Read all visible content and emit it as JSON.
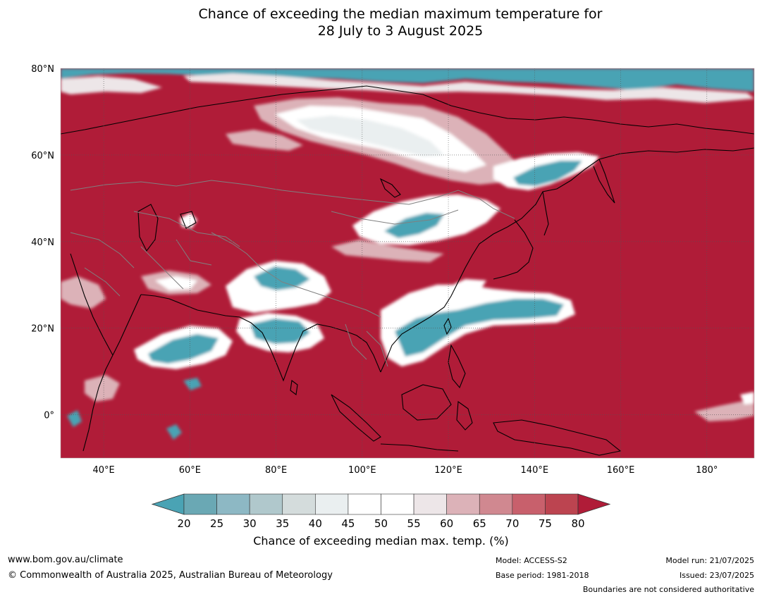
{
  "title": {
    "line1": "Chance of exceeding the median maximum temperature for",
    "line2": "28 July to 3 August 2025"
  },
  "map": {
    "lat_labels": [
      "80°N",
      "60°N",
      "40°N",
      "20°N",
      "0°"
    ],
    "lon_labels": [
      "40°E",
      "60°E",
      "80°E",
      "100°E",
      "120°E",
      "140°E",
      "160°E",
      "180°"
    ],
    "lat_values": [
      80,
      60,
      40,
      20,
      0
    ],
    "lon_values": [
      40,
      60,
      80,
      100,
      120,
      140,
      160,
      180
    ],
    "extent": {
      "lon_min": 30,
      "lon_max": 191,
      "lat_min": -10,
      "lat_max": 80
    },
    "colors": {
      "land_high": "#b01c38",
      "ocean_high": "#b01c38",
      "low": "#4aa3b4",
      "neutral": "#ffffff",
      "pale_pink": "#dcb2b8",
      "mid_red": "#c8606c",
      "coast": "#000000",
      "border": "#808080"
    }
  },
  "colorbar": {
    "ticks": [
      "20",
      "25",
      "30",
      "35",
      "40",
      "45",
      "50",
      "55",
      "60",
      "65",
      "70",
      "75",
      "80"
    ],
    "colors": [
      "#4aa3b4",
      "#6aa8b4",
      "#8db8c4",
      "#b0c8cc",
      "#d4dcdc",
      "#eaeff0",
      "#ffffff",
      "#ffffff",
      "#ede6e8",
      "#dcb2b8",
      "#d08890",
      "#c8606c",
      "#bc4450",
      "#b01c38"
    ],
    "label": "Chance of exceeding median max. temp. (%)"
  },
  "footer": {
    "website": "www.bom.gov.au/climate",
    "copyright": "© Commonwealth of Australia 2025, Australian Bureau of Meteorology",
    "model": "Model: ACCESS-S2",
    "base_period": "Base period: 1981-2018",
    "model_run": "Model run: 21/07/2025",
    "issued": "Issued: 23/07/2025",
    "disclaimer": "Boundaries are not considered authoritative"
  }
}
